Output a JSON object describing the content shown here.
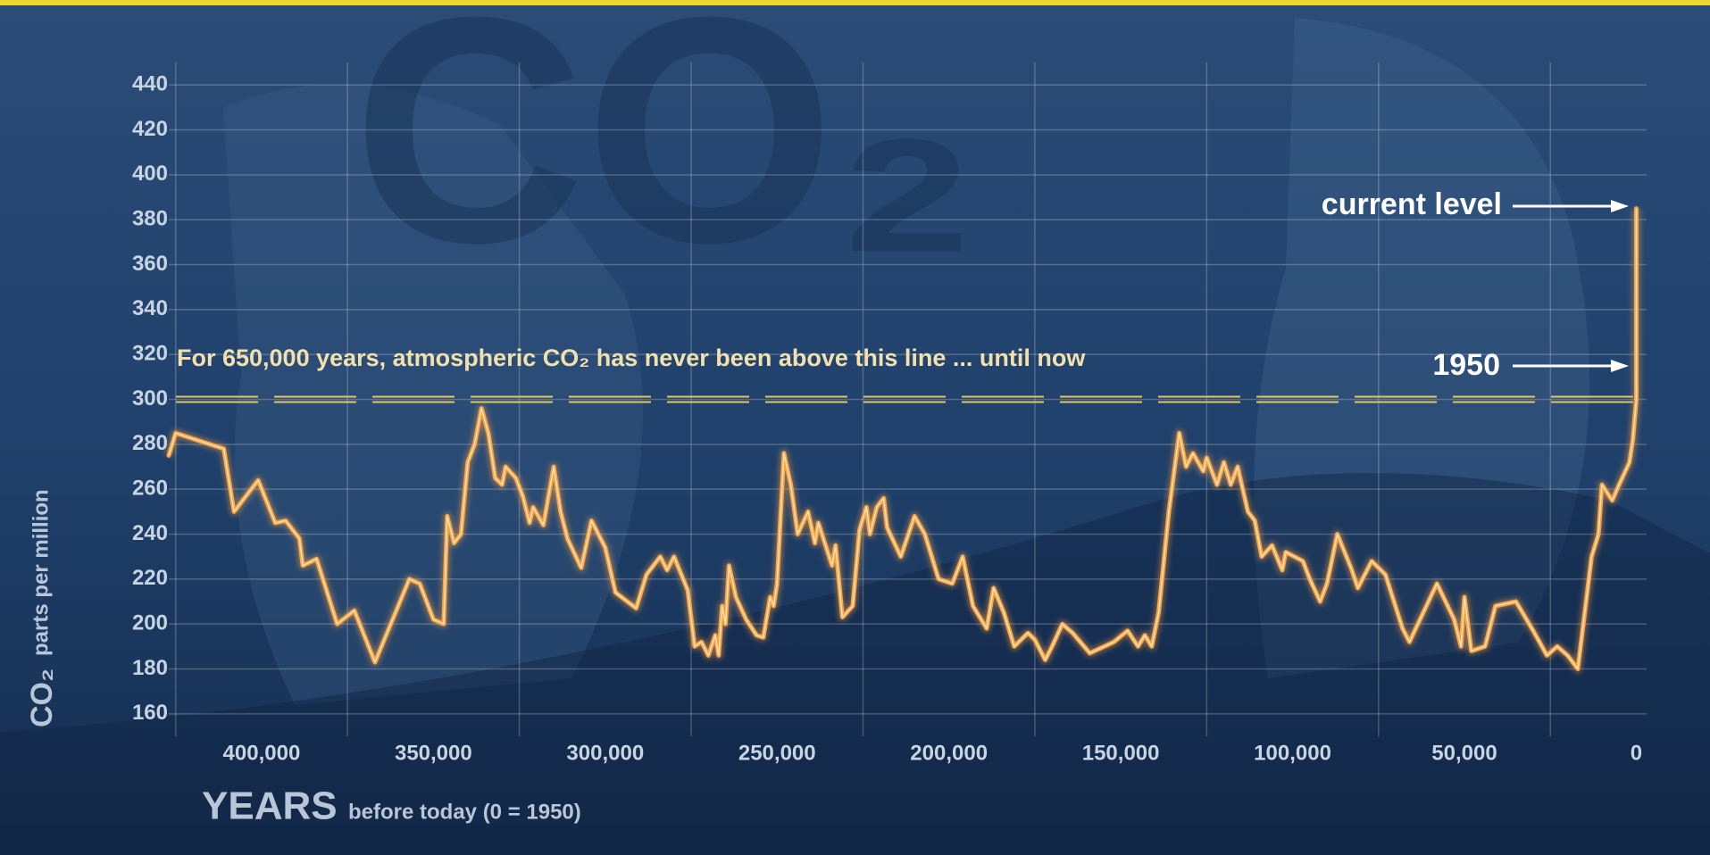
{
  "chart_data": {
    "type": "line",
    "watermark": "CO₂",
    "y_label_main": "CO₂",
    "y_label_sub": "parts per million",
    "x_label_main": "YEARS",
    "x_label_sub": "before today (0 = 1950)",
    "threshold": 300,
    "threshold_label": "For 650,000 years, atmospheric CO₂ has never been above this line ... until now",
    "annotations": [
      "current level",
      "1950"
    ],
    "color": "#f7a247",
    "grid": true,
    "xlim": [
      427000,
      -3000
    ],
    "ylim": [
      150,
      450
    ],
    "yticks": [
      160,
      180,
      200,
      220,
      240,
      260,
      280,
      300,
      320,
      340,
      360,
      380,
      400,
      420,
      440
    ],
    "xticks": [
      {
        "value": 400000,
        "label": "400,000"
      },
      {
        "value": 350000,
        "label": "350,000"
      },
      {
        "value": 300000,
        "label": "300,000"
      },
      {
        "value": 250000,
        "label": "250,000"
      },
      {
        "value": 200000,
        "label": "200,000"
      },
      {
        "value": 150000,
        "label": "150,000"
      },
      {
        "value": 100000,
        "label": "100,000"
      },
      {
        "value": 50000,
        "label": "50,000"
      },
      0
    ],
    "x_grid_lines": [
      425000,
      375000,
      325000,
      275000,
      225000,
      175000,
      125000,
      75000,
      25000
    ],
    "x": [
      427000,
      425000,
      411000,
      408000,
      401000,
      396000,
      393000,
      389000,
      388000,
      384000,
      378000,
      373000,
      367000,
      357000,
      354000,
      350000,
      347000,
      346000,
      344000,
      342000,
      340000,
      338000,
      336000,
      334000,
      332000,
      330000,
      329000,
      326000,
      324000,
      322000,
      321000,
      318000,
      315000,
      313000,
      311000,
      307000,
      304000,
      300000,
      297000,
      291000,
      288000,
      284000,
      282000,
      280000,
      276000,
      274000,
      272000,
      270000,
      268000,
      267000,
      266000,
      265000,
      264000,
      262000,
      259000,
      256000,
      254000,
      252000,
      251000,
      250000,
      248000,
      246000,
      244000,
      241000,
      239000,
      238000,
      234000,
      233000,
      231000,
      228000,
      226000,
      224000,
      223000,
      221000,
      219000,
      218000,
      214000,
      210000,
      207000,
      203000,
      199000,
      196000,
      193000,
      189000,
      187000,
      184000,
      181000,
      177000,
      175000,
      172000,
      170000,
      167000,
      164000,
      159000,
      152000,
      148000,
      145000,
      143000,
      141000,
      139000,
      136000,
      133000,
      131000,
      129000,
      126000,
      125000,
      122000,
      120000,
      118000,
      116000,
      113000,
      111000,
      109000,
      106000,
      103000,
      102000,
      97000,
      95000,
      92000,
      90000,
      87000,
      83000,
      81000,
      77000,
      73000,
      68000,
      66000,
      62000,
      58000,
      53000,
      51000,
      50000,
      48000,
      44000,
      41000,
      35000,
      30000,
      26000,
      23000,
      20000,
      17000,
      13000,
      11000,
      10000,
      7000,
      5000,
      2000,
      1000,
      0,
      0
    ],
    "values": [
      275,
      285,
      278,
      250,
      264,
      245,
      246,
      238,
      226,
      229,
      200,
      206,
      183,
      220,
      218,
      202,
      200,
      248,
      236,
      240,
      272,
      280,
      296,
      285,
      265,
      262,
      270,
      265,
      257,
      245,
      252,
      244,
      270,
      250,
      238,
      225,
      246,
      234,
      214,
      207,
      222,
      230,
      224,
      230,
      215,
      190,
      192,
      186,
      195,
      186,
      208,
      200,
      226,
      212,
      202,
      195,
      194,
      212,
      208,
      218,
      276,
      262,
      240,
      250,
      236,
      245,
      226,
      235,
      203,
      208,
      242,
      252,
      240,
      252,
      256,
      243,
      230,
      248,
      240,
      220,
      218,
      230,
      208,
      198,
      216,
      205,
      190,
      196,
      193,
      184,
      190,
      200,
      196,
      187,
      192,
      197,
      190,
      195,
      190,
      205,
      250,
      285,
      270,
      276,
      268,
      274,
      262,
      272,
      262,
      270,
      250,
      246,
      230,
      235,
      224,
      232,
      228,
      220,
      210,
      218,
      240,
      225,
      216,
      228,
      222,
      198,
      192,
      205,
      218,
      202,
      190,
      212,
      188,
      190,
      208,
      210,
      197,
      186,
      190,
      186,
      180,
      230,
      240,
      262,
      255,
      262,
      272,
      282,
      300,
      385
    ]
  }
}
